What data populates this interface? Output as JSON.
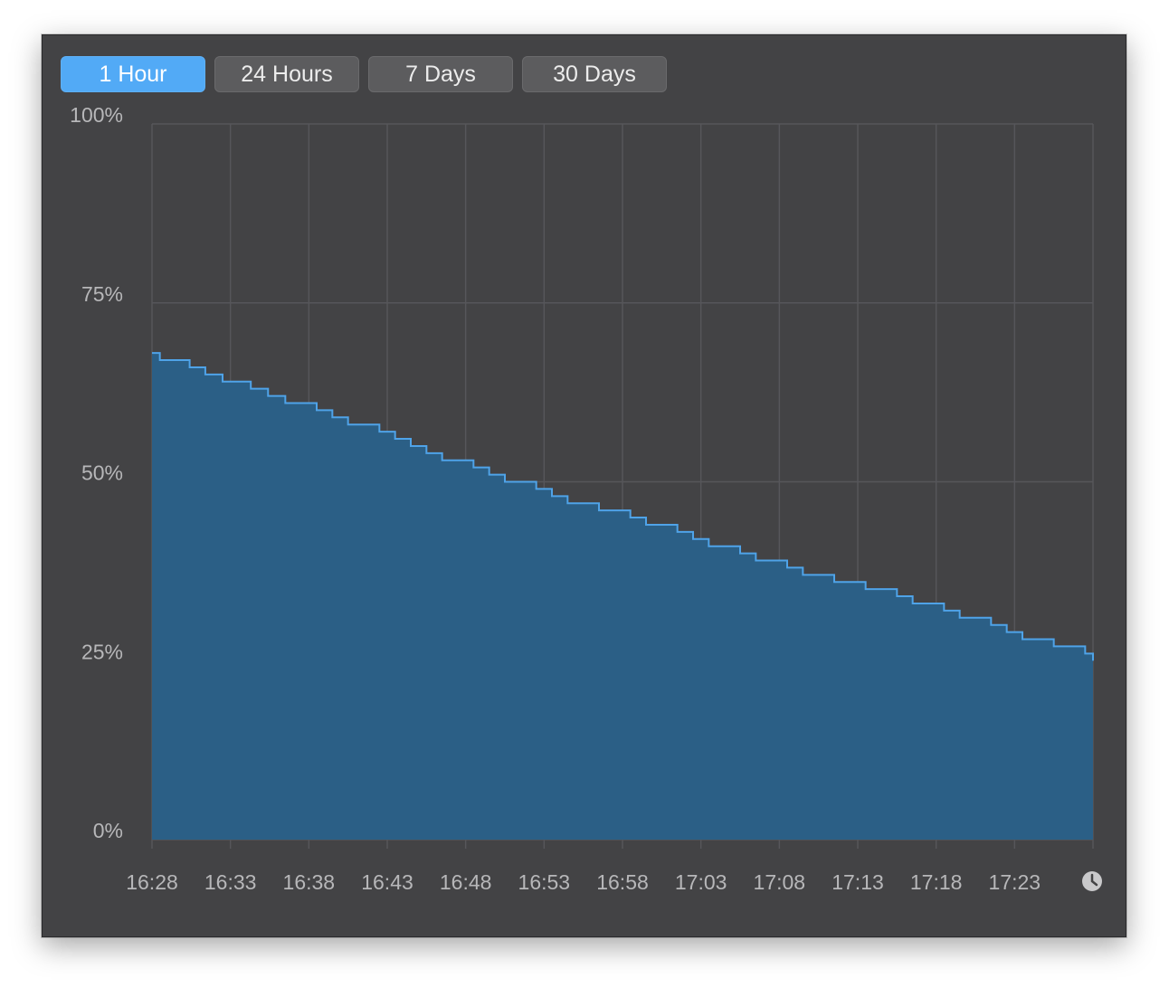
{
  "tabs": [
    "1 Hour",
    "24 Hours",
    "7 Days",
    "30 Days"
  ],
  "active_tab_index": 0,
  "clock_icon": "clock-icon",
  "colors": {
    "window_bg": "#434345",
    "area_fill": "#2b5f86",
    "area_line": "#4fa3e8",
    "grid": "#56565a",
    "active_tab": "#52aaf6"
  },
  "chart_data": {
    "type": "area",
    "title": "",
    "xlabel": "",
    "ylabel": "",
    "ylim": [
      0,
      100
    ],
    "yticks": [
      "100%",
      "75%",
      "50%",
      "25%",
      "0%"
    ],
    "ytick_values": [
      100,
      75,
      50,
      25,
      0
    ],
    "xticks": [
      "16:28",
      "16:33",
      "16:38",
      "16:43",
      "16:48",
      "16:53",
      "16:58",
      "17:03",
      "17:08",
      "17:13",
      "17:18",
      "17:23"
    ],
    "xrange_minutes": [
      0,
      60
    ],
    "grid": true,
    "step": true,
    "series": [
      {
        "x": [
          0,
          0.5,
          2.4,
          3.4,
          4.5,
          6.3,
          7.4,
          8.5,
          10.5,
          11.5,
          12.5,
          14.5,
          15.5,
          16.5,
          17.5,
          18.5,
          20.5,
          21.5,
          22.5,
          24.5,
          25.5,
          26.5,
          28.5,
          30.5,
          31.5,
          33.5,
          34.5,
          35.5,
          37.5,
          38.5,
          40.5,
          41.5,
          43.5,
          45.5,
          47.5,
          48.5,
          50.5,
          51.5,
          53.5,
          54.5,
          55.5,
          57.5,
          59.5,
          60
        ],
        "values": [
          68,
          67,
          66,
          65,
          64,
          63,
          62,
          61,
          60,
          59,
          58,
          57,
          56,
          55,
          54,
          53,
          52,
          51,
          50,
          49,
          48,
          47,
          46,
          45,
          44,
          43,
          42,
          41,
          40,
          39,
          38,
          37,
          36,
          35,
          34,
          33,
          32,
          31,
          30,
          29,
          28,
          27,
          26,
          25
        ]
      }
    ]
  }
}
